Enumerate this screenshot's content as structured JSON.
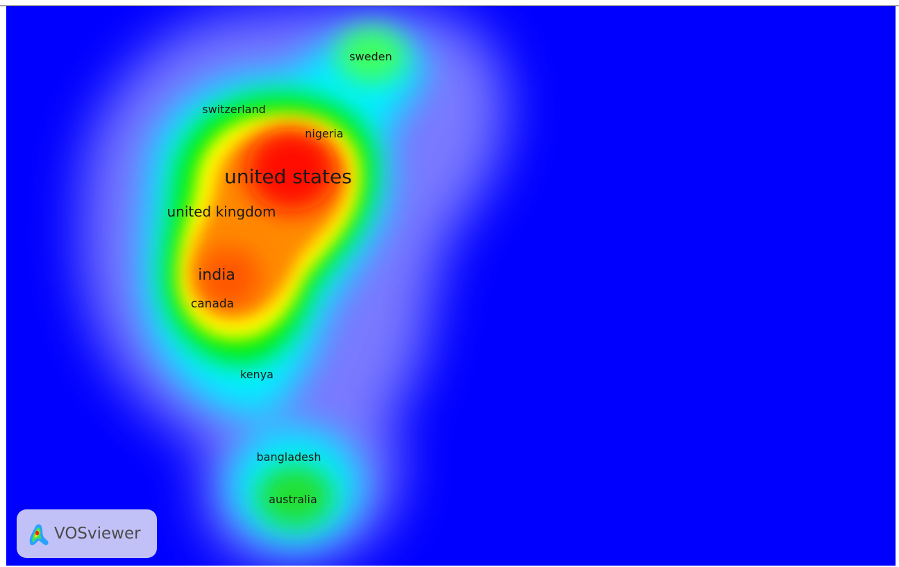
{
  "app": {
    "logo_text": "VOSviewer",
    "logo_icon": "vosviewer-logo-icon"
  },
  "density_map": {
    "colors": {
      "background": "#0000ff",
      "low": "#00ffff",
      "mid": "#00ff00",
      "high": "#ffff00",
      "peak": "#ff0000"
    },
    "items": [
      {
        "label": "sweden",
        "size": "small"
      },
      {
        "label": "switzerland",
        "size": "small"
      },
      {
        "label": "nigeria",
        "size": "small"
      },
      {
        "label": "united states",
        "size": "large"
      },
      {
        "label": "united kingdom",
        "size": "medium"
      },
      {
        "label": "india",
        "size": "medium"
      },
      {
        "label": "canada",
        "size": "small"
      },
      {
        "label": "kenya",
        "size": "small"
      },
      {
        "label": "bangladesh",
        "size": "small"
      },
      {
        "label": "australia",
        "size": "small"
      }
    ]
  }
}
